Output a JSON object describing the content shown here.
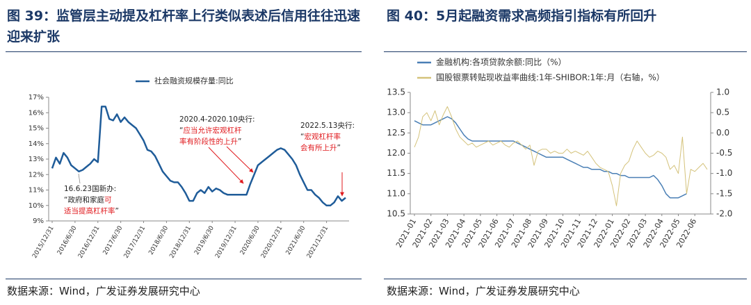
{
  "chart_data": [
    {
      "type": "line",
      "title": "图 39：监管层主动提及杠杆率上行类似表述后信用往往迅速迎来扩张",
      "source": "数据来源：Wind，广发证券发展研究中心",
      "categories": [
        "2015/12/31",
        null,
        null,
        null,
        null,
        null,
        "2016/6/30",
        null,
        null,
        null,
        null,
        null,
        "2016/12/31",
        null,
        null,
        null,
        null,
        null,
        "2017/6/30",
        null,
        null,
        null,
        null,
        null,
        "2017/12/31",
        null,
        null,
        null,
        null,
        null,
        "2018/6/30",
        null,
        null,
        null,
        null,
        null,
        "2018/12/31",
        null,
        null,
        null,
        null,
        null,
        "2019/6/30",
        null,
        null,
        null,
        null,
        null,
        "2019/12/31",
        null,
        null,
        null,
        null,
        null,
        "2020/6/30",
        null,
        null,
        null,
        null,
        null,
        "2020/12/31",
        null,
        null,
        null,
        null,
        null,
        "2021/6/30",
        null,
        null,
        null,
        null,
        null,
        "2021/12/31",
        null,
        null,
        null,
        null,
        null
      ],
      "series": [
        {
          "name": "社会融资规模存量:同比",
          "color": "#1f5c99",
          "values": [
            12.4,
            13.1,
            12.7,
            13.4,
            13.1,
            12.6,
            12.4,
            12.2,
            12.3,
            12.5,
            12.7,
            13.0,
            12.8,
            16.4,
            16.4,
            15.6,
            15.5,
            15.9,
            15.4,
            15.7,
            15.4,
            15.2,
            15.0,
            14.6,
            14.2,
            13.6,
            13.5,
            13.2,
            12.7,
            12.2,
            11.9,
            11.6,
            11.5,
            11.5,
            11.2,
            10.8,
            10.3,
            10.3,
            10.8,
            11.0,
            10.8,
            11.2,
            10.9,
            11.1,
            11.0,
            10.8,
            10.7,
            10.7,
            10.7,
            10.7,
            10.7,
            10.7,
            11.4,
            12.0,
            12.6,
            12.8,
            13.0,
            13.2,
            13.4,
            13.6,
            13.7,
            13.6,
            13.3,
            13.0,
            12.6,
            12.0,
            11.5,
            11.0,
            11.0,
            10.7,
            10.5,
            10.2,
            10.0,
            10.0,
            10.2,
            10.6,
            10.3,
            10.5
          ]
        }
      ],
      "ylim": [
        9,
        17
      ],
      "yticks": [
        {
          "value": 9,
          "label": "9%"
        },
        {
          "value": 10,
          "label": "10%"
        },
        {
          "value": 11,
          "label": "11%"
        },
        {
          "value": 12,
          "label": "12%"
        },
        {
          "value": 13,
          "label": "13%"
        },
        {
          "value": 14,
          "label": "14%"
        },
        {
          "value": 15,
          "label": "15%"
        },
        {
          "value": 16,
          "label": "16%"
        },
        {
          "value": 17,
          "label": "17%"
        }
      ],
      "grid": false,
      "annotations": [
        {
          "lines": [
            [
              {
                "text": "16.6.23国新办:"
              }
            ],
            [
              {
                "text": "“政府和家庭"
              },
              {
                "text": "可",
                "color": "#e0191d"
              }
            ],
            [
              {
                "text": "适当提高杠杆率",
                "color": "#e0191d"
              },
              {
                "text": "”"
              }
            ]
          ]
        },
        {
          "lines": [
            [
              {
                "text": "2020.4-2020.10央行:"
              }
            ],
            [
              {
                "text": "“"
              },
              {
                "text": "应当允许宏观杠杆",
                "color": "#e0191d"
              }
            ],
            [
              {
                "text": "率有阶段性的上升",
                "color": "#e0191d"
              },
              {
                "text": "”"
              }
            ]
          ]
        },
        {
          "lines": [
            [
              {
                "text": "2022.5.13央行:"
              }
            ],
            [
              {
                "text": "“"
              },
              {
                "text": "宏观杠杆率",
                "color": "#e0191d"
              }
            ],
            [
              {
                "text": "会有所上升",
                "color": "#e0191d"
              },
              {
                "text": "”"
              }
            ]
          ]
        }
      ]
    },
    {
      "type": "line",
      "title": "图 40：5月起融资需求高频指引指标有所回升",
      "source": "数据来源：Wind，广发证券发展研究中心",
      "categories": [
        "2021-01",
        null,
        null,
        null,
        "2021-02",
        null,
        null,
        null,
        "2021-03",
        null,
        null,
        null,
        "2021-04",
        null,
        null,
        null,
        "2021-05",
        null,
        null,
        null,
        "2021-06",
        null,
        null,
        null,
        "2021-07",
        null,
        null,
        null,
        "2021-08",
        null,
        null,
        null,
        "2021-09",
        null,
        null,
        null,
        "2021-10",
        null,
        null,
        null,
        "2021-11",
        null,
        null,
        null,
        "2021-12",
        null,
        null,
        null,
        "2022-01",
        null,
        null,
        null,
        "2022-02",
        null,
        null,
        null,
        "2022-03",
        null,
        null,
        null,
        "2022-04",
        null,
        null,
        null,
        "2022-05",
        null,
        null,
        null,
        "2022-06",
        null,
        null,
        null
      ],
      "series": [
        {
          "name": "金融机构:各项贷款余额:同比（%）",
          "color": "#4a7fb5",
          "values": [
            12.8,
            12.75,
            12.7,
            12.7,
            12.7,
            12.75,
            12.8,
            12.85,
            12.9,
            12.85,
            12.75,
            12.6,
            12.45,
            12.35,
            12.3,
            12.3,
            12.3,
            12.3,
            12.3,
            12.3,
            12.3,
            12.3,
            12.3,
            12.3,
            12.3,
            12.25,
            12.2,
            12.15,
            12.1,
            12.05,
            12.0,
            11.95,
            11.9,
            11.9,
            11.9,
            11.9,
            11.9,
            11.85,
            11.8,
            11.75,
            11.7,
            11.65,
            11.65,
            11.6,
            11.6,
            11.6,
            11.55,
            11.55,
            11.5,
            11.5,
            11.45,
            11.45,
            11.4,
            11.4,
            11.4,
            11.4,
            11.4,
            11.4,
            11.45,
            11.35,
            11.2,
            11.0,
            10.9,
            10.9,
            10.9,
            10.95,
            11.0,
            null,
            null,
            null,
            null,
            null
          ]
        },
        {
          "name": "国股银票转贴现收益率曲线:1年-SHIBOR:1年:月（右轴，%）",
          "color": "#d4c27a",
          "axis": "y2",
          "values": [
            -0.35,
            -0.1,
            0.4,
            0.5,
            0.3,
            0.55,
            0.2,
            0.45,
            0.65,
            0.4,
            0.1,
            -0.1,
            -0.2,
            -0.3,
            -0.25,
            -0.35,
            -0.3,
            -0.25,
            -0.2,
            -0.3,
            -0.25,
            -0.2,
            -0.3,
            -0.35,
            -0.25,
            -0.2,
            -0.3,
            -0.4,
            -0.3,
            -0.8,
            -0.45,
            -0.4,
            -0.4,
            -0.5,
            -0.45,
            -0.5,
            -0.5,
            -0.4,
            -0.5,
            -0.45,
            -0.5,
            -0.55,
            -0.45,
            -0.6,
            -0.75,
            -0.85,
            -0.9,
            -0.95,
            -1.3,
            -1.8,
            -1.0,
            -0.8,
            -0.7,
            -0.4,
            -0.2,
            -0.35,
            -0.5,
            -0.6,
            -0.55,
            -0.45,
            -0.5,
            -0.6,
            -0.9,
            -0.8,
            -1.0,
            -0.1,
            -1.5,
            -0.9,
            -0.95,
            -0.85,
            -0.75,
            -0.9
          ]
        }
      ],
      "ylim": [
        10.5,
        13.5
      ],
      "yticks": [
        10.5,
        {
          "value": 11,
          "label": "11.0"
        },
        11.5,
        {
          "value": 12,
          "label": "12.0"
        },
        12.5,
        {
          "value": 13,
          "label": "13.0"
        },
        13.5
      ],
      "y2lim": [
        -2,
        1
      ],
      "y2ticks": [
        {
          "value": -2,
          "label": "-2.0"
        },
        -1.5,
        {
          "value": -1,
          "label": "-1.0"
        },
        -0.5,
        {
          "value": 0,
          "label": "0.0"
        },
        0.5,
        {
          "value": 1,
          "label": "1.0"
        }
      ],
      "grid": false
    }
  ]
}
